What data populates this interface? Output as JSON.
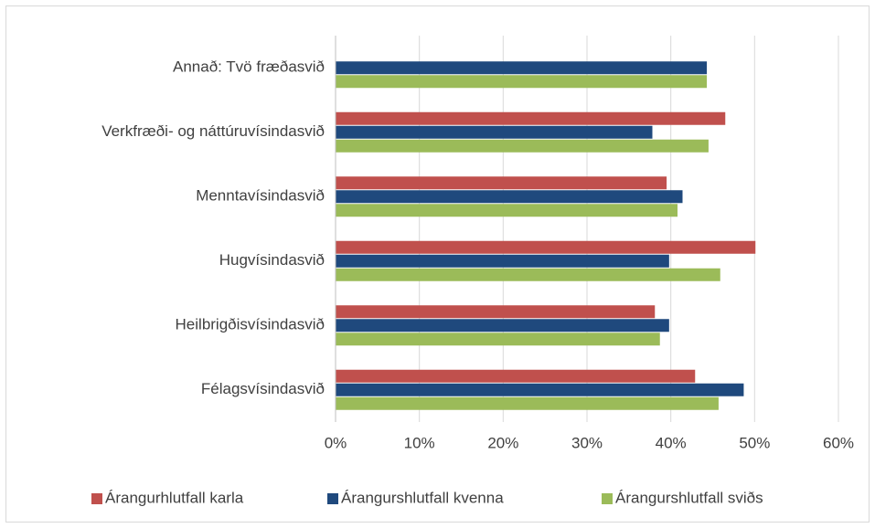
{
  "chart_data": {
    "type": "hbar",
    "categories": [
      "Annað: Tvö fræðasvið",
      "Verkfræði- og náttúruvísindasvið",
      "Menntavísindasvið",
      "Hugvísindasvið",
      "Heilbrigðisvísindasvið",
      "Félagsvísindasvið"
    ],
    "series": [
      {
        "name": "Árangurhlutfall karla",
        "color": "#c0504d",
        "values": [
          null,
          46.5,
          39.5,
          50.1,
          38.1,
          42.9
        ]
      },
      {
        "name": "Árangurshlutfall kvenna",
        "color": "#1f497d",
        "values": [
          44.3,
          37.8,
          41.4,
          39.8,
          39.8,
          48.7
        ]
      },
      {
        "name": "Árangurshlutfall sviðs",
        "color": "#9bbb59",
        "values": [
          44.3,
          44.5,
          40.8,
          45.9,
          38.7,
          45.7
        ]
      }
    ],
    "xlim": [
      0,
      60
    ],
    "xticks": [
      {
        "value": 0,
        "label": "0%"
      },
      {
        "value": 10,
        "label": "10%"
      },
      {
        "value": 20,
        "label": "20%"
      },
      {
        "value": 30,
        "label": "30%"
      },
      {
        "value": 40,
        "label": "40%"
      },
      {
        "value": 50,
        "label": "50%"
      },
      {
        "value": 60,
        "label": "60%"
      }
    ],
    "grid": true,
    "legend": "bottom"
  }
}
